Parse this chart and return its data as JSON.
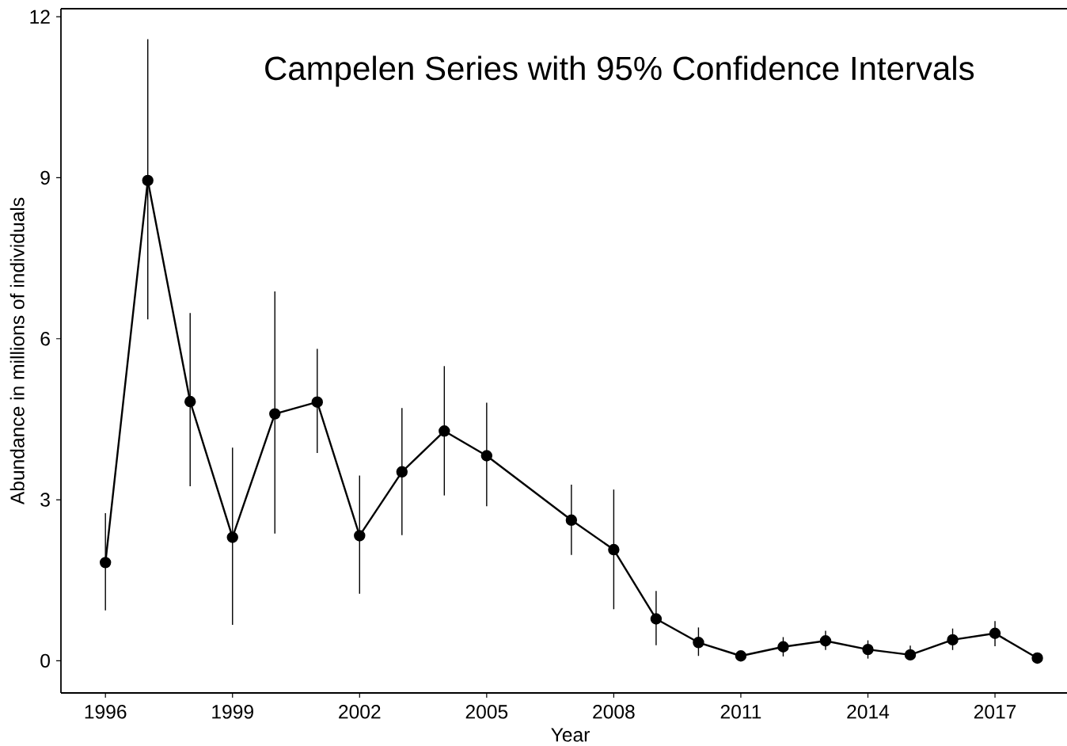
{
  "chart_data": {
    "type": "line",
    "title": "Campelen Series with 95% Confidence Intervals",
    "xlabel": "Year",
    "ylabel": "Abundance in millions of individuals",
    "x": [
      1996,
      1997,
      1998,
      1999,
      2000,
      2001,
      2002,
      2003,
      2004,
      2005,
      2007,
      2008,
      2009,
      2010,
      2011,
      2012,
      2013,
      2014,
      2015,
      2016,
      2017,
      2018
    ],
    "series": [
      {
        "color": "#000000",
        "values": [
          1.83,
          8.95,
          4.83,
          2.3,
          4.6,
          4.82,
          2.33,
          3.52,
          4.28,
          3.82,
          2.62,
          2.07,
          0.78,
          0.34,
          0.09,
          0.26,
          0.37,
          0.21,
          0.11,
          0.39,
          0.51,
          0.05
        ],
        "errors": [
          [
            0.94,
            2.75
          ],
          [
            6.36,
            11.58
          ],
          [
            3.25,
            6.48
          ],
          [
            0.67,
            3.97
          ],
          [
            2.37,
            6.88
          ],
          [
            3.87,
            5.81
          ],
          [
            1.25,
            3.45
          ],
          [
            2.34,
            4.71
          ],
          [
            3.08,
            5.49
          ],
          [
            2.88,
            4.81
          ],
          [
            1.97,
            3.28
          ],
          [
            0.96,
            3.19
          ],
          [
            0.29,
            1.3
          ],
          [
            0.09,
            0.62
          ],
          null,
          [
            0.08,
            0.44
          ],
          [
            0.2,
            0.56
          ],
          [
            0.04,
            0.38
          ],
          [
            0.01,
            0.28
          ],
          [
            0.2,
            0.6
          ],
          [
            0.27,
            0.74
          ],
          null
        ]
      }
    ],
    "xlim": [
      1994.95,
      2018.7
    ],
    "ylim": [
      -0.6,
      12.15
    ],
    "xticks": [
      1996,
      1999,
      2002,
      2005,
      2008,
      2011,
      2014,
      2017
    ],
    "yticks": [
      0,
      3,
      6,
      9,
      12
    ],
    "marker": "circle",
    "line_style": "solid"
  }
}
